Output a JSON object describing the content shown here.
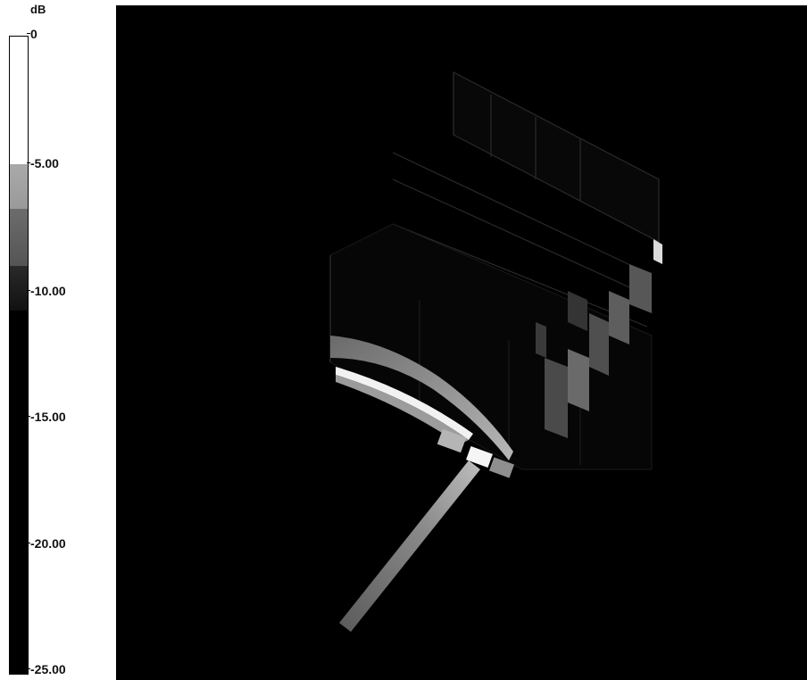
{
  "legend": {
    "unit": "dB",
    "ticks": [
      "0",
      "-5.00",
      "-10.00",
      "-15.00",
      "-20.00",
      "-25.00"
    ]
  },
  "colors": {
    "background": "#000000",
    "scale_max": "#ffffff",
    "scale_mid": "#a0a0a0",
    "scale_min": "#000000"
  }
}
